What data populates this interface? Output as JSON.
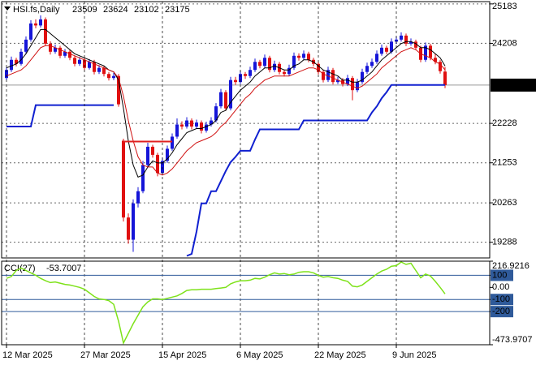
{
  "chart_data": [
    {
      "type": "candlestick",
      "title": "HSI.fs,Daily",
      "up_color": "#1515d8",
      "down_color": "#e01010",
      "grid": true,
      "price_line": true,
      "ylim": [
        18900,
        25240
      ],
      "yticks": [
        19288,
        20263,
        21253,
        22228,
        24208,
        25183
      ],
      "categories": [
        "12 Mar 2025",
        null,
        null,
        null,
        null,
        null,
        null,
        null,
        null,
        null,
        null,
        null,
        null,
        null,
        null,
        null,
        "27 Mar 2025",
        null,
        null,
        null,
        null,
        null,
        null,
        null,
        null,
        null,
        null,
        null,
        null,
        null,
        null,
        null,
        "15 Apr 2025",
        null,
        null,
        null,
        null,
        null,
        null,
        null,
        null,
        null,
        null,
        null,
        null,
        null,
        null,
        null,
        "6 May 2025",
        null,
        null,
        null,
        null,
        null,
        null,
        null,
        null,
        null,
        null,
        null,
        null,
        null,
        null,
        null,
        "22 May 2025",
        null,
        null,
        null,
        null,
        null,
        null,
        null,
        null,
        null,
        null,
        null,
        null,
        null,
        null,
        null,
        "9 Jun 2025",
        null,
        null,
        null,
        null,
        null,
        null,
        null,
        null,
        null,
        null
      ],
      "open": [
        23350,
        23550,
        23800,
        23700,
        24000,
        24300,
        24700,
        24650,
        24800,
        24200,
        24000,
        24100,
        23900,
        24000,
        23850,
        23700,
        23800,
        23600,
        23750,
        23500,
        23600,
        23450,
        23350,
        23400,
        21800,
        19900,
        19350,
        20250,
        20550,
        21200,
        21650,
        21450,
        21000,
        21300,
        21600,
        21900,
        22200,
        22150,
        22300,
        22150,
        22250,
        22050,
        22200,
        22300,
        22650,
        23000,
        22600,
        23300,
        23250,
        23450,
        23400,
        23550,
        23750,
        23650,
        23850,
        23550,
        23700,
        23500,
        23450,
        23600,
        23900,
        23850,
        23950,
        23800,
        23700,
        23500,
        23300,
        23550,
        23250,
        23300,
        23200,
        23350,
        23050,
        23250,
        23500,
        23650,
        23750,
        23950,
        24100,
        24000,
        24250,
        24300,
        24400,
        24200,
        24250,
        24100,
        23800,
        24150,
        23850,
        23750,
        23509
      ],
      "high": [
        23620,
        23880,
        23850,
        24080,
        24380,
        24780,
        24800,
        24900,
        24850,
        24260,
        24180,
        24150,
        24070,
        24050,
        23900,
        23870,
        23850,
        23820,
        23800,
        23670,
        23650,
        23500,
        23480,
        23450,
        21850,
        20000,
        20350,
        20650,
        21300,
        21750,
        21700,
        21500,
        21380,
        21680,
        21980,
        22350,
        22280,
        22380,
        22350,
        22320,
        22300,
        22270,
        22380,
        22730,
        23080,
        23050,
        23380,
        23380,
        23530,
        23500,
        23630,
        23830,
        23800,
        23930,
        23900,
        23780,
        23750,
        23560,
        23680,
        23980,
        23960,
        24030,
        24000,
        23850,
        23750,
        23550,
        23630,
        23600,
        23380,
        23350,
        23430,
        23400,
        23330,
        23580,
        23730,
        23830,
        24030,
        24180,
        24150,
        24330,
        24380,
        24480,
        24450,
        24330,
        24300,
        24150,
        24230,
        24200,
        23950,
        23800,
        23624
      ],
      "low": [
        23300,
        23500,
        23640,
        23660,
        23950,
        24250,
        24580,
        24600,
        24150,
        23930,
        23950,
        23840,
        23850,
        23790,
        23640,
        23650,
        23540,
        23560,
        23440,
        23450,
        23390,
        23290,
        23300,
        22640,
        19800,
        19250,
        19050,
        20150,
        20500,
        21150,
        21380,
        20920,
        20950,
        21250,
        21550,
        21850,
        22080,
        22100,
        22080,
        22100,
        21980,
        22000,
        22150,
        22250,
        22600,
        22540,
        22550,
        23180,
        23200,
        23330,
        23350,
        23500,
        23590,
        23600,
        23490,
        23500,
        23440,
        23390,
        23400,
        23550,
        23780,
        23800,
        23740,
        23640,
        23440,
        23240,
        23250,
        23190,
        23200,
        23140,
        23150,
        22800,
        23000,
        23200,
        23450,
        23600,
        23700,
        23900,
        23940,
        23950,
        24200,
        24250,
        24140,
        24150,
        24040,
        23740,
        23750,
        23790,
        23690,
        23460,
        23102
      ],
      "close": [
        23550,
        23800,
        23700,
        24000,
        24300,
        24700,
        24650,
        24800,
        24200,
        24000,
        24100,
        23900,
        24000,
        23850,
        23700,
        23800,
        23600,
        23750,
        23500,
        23600,
        23450,
        23350,
        23400,
        22700,
        19900,
        19350,
        20250,
        20550,
        21200,
        21650,
        21450,
        21000,
        21300,
        21600,
        21900,
        22200,
        22150,
        22300,
        22150,
        22250,
        22050,
        22200,
        22300,
        22650,
        23000,
        22600,
        23300,
        23250,
        23450,
        23400,
        23550,
        23750,
        23650,
        23850,
        23550,
        23700,
        23500,
        23450,
        23600,
        23900,
        23850,
        23950,
        23800,
        23700,
        23500,
        23300,
        23550,
        23250,
        23300,
        23200,
        23350,
        23050,
        23250,
        23500,
        23650,
        23750,
        23950,
        24100,
        24000,
        24250,
        24300,
        24400,
        24200,
        24250,
        24100,
        23800,
        24150,
        23850,
        23750,
        23520,
        23175
      ],
      "lines": [
        {
          "color": "#000000",
          "width": 1,
          "values": [
            23600,
            23650,
            23700,
            23800,
            23950,
            24150,
            24350,
            24550,
            24550,
            24450,
            24350,
            24250,
            24150,
            24050,
            23950,
            23900,
            23850,
            23800,
            23750,
            23700,
            23650,
            23550,
            23500,
            23300,
            22600,
            21800,
            21200,
            20900,
            20950,
            21150,
            21300,
            21250,
            21250,
            21350,
            21500,
            21700,
            21850,
            22000,
            22050,
            22100,
            22100,
            22150,
            22200,
            22300,
            22500,
            22550,
            22750,
            22900,
            23050,
            23150,
            23250,
            23400,
            23500,
            23600,
            23600,
            23650,
            23600,
            23550,
            23550,
            23650,
            23700,
            23800,
            23800,
            23750,
            23650,
            23550,
            23500,
            23450,
            23400,
            23300,
            23300,
            23250,
            23250,
            23300,
            23400,
            23500,
            23650,
            23800,
            23900,
            24000,
            24100,
            24200,
            24250,
            24250,
            24200,
            24100,
            24100,
            24050,
            23950,
            23850,
            23650
          ]
        },
        {
          "color": "#d01010",
          "width": 1,
          "values": [
            23400,
            23450,
            23500,
            23550,
            23650,
            23800,
            23950,
            24100,
            24150,
            24150,
            24100,
            24050,
            24000,
            23950,
            23900,
            23850,
            23800,
            23750,
            23700,
            23650,
            23600,
            23550,
            23500,
            23350,
            22900,
            22300,
            21800,
            21400,
            21200,
            21150,
            21150,
            21000,
            20950,
            21000,
            21100,
            21250,
            21400,
            21550,
            21650,
            21750,
            21800,
            21850,
            21900,
            22000,
            22150,
            22250,
            22400,
            22550,
            22700,
            22850,
            22950,
            23100,
            23200,
            23300,
            23350,
            23400,
            23400,
            23400,
            23400,
            23450,
            23500,
            23550,
            23600,
            23600,
            23550,
            23450,
            23400,
            23350,
            23300,
            23250,
            23200,
            23150,
            23100,
            23150,
            23250,
            23350,
            23450,
            23600,
            23700,
            23800,
            23900,
            24000,
            24050,
            24100,
            24050,
            23950,
            23900,
            23850,
            23750,
            23700,
            23550
          ]
        },
        {
          "color": "#1020d0",
          "width": 2,
          "values": [
            22150,
            22150,
            22150,
            22150,
            22150,
            22150,
            22680,
            22680,
            22680,
            22680,
            22680,
            22680,
            22680,
            22680,
            22680,
            22680,
            22680,
            22680,
            22680,
            22680,
            22680,
            22680,
            22680,
            null,
            null,
            null,
            null,
            null,
            null,
            null,
            null,
            null,
            null,
            null,
            null,
            null,
            null,
            18950,
            19000,
            19550,
            20250,
            20250,
            20550,
            20550,
            20800,
            21050,
            21270,
            21400,
            21550,
            21550,
            21550,
            21830,
            22080,
            22080,
            22080,
            22080,
            22080,
            22080,
            22080,
            22080,
            22080,
            22300,
            22300,
            22300,
            22300,
            22300,
            22300,
            22300,
            22300,
            22300,
            22300,
            22300,
            22300,
            22300,
            22300,
            22500,
            22650,
            22850,
            23000,
            23180,
            23180,
            23180,
            23180,
            23180,
            23180,
            23180,
            23180,
            23180,
            23180,
            23180,
            23180
          ]
        },
        {
          "color": "#e02020",
          "width": 2,
          "values": [
            null,
            null,
            null,
            null,
            null,
            null,
            null,
            null,
            null,
            null,
            null,
            null,
            null,
            null,
            null,
            null,
            null,
            null,
            null,
            null,
            null,
            null,
            null,
            null,
            21780,
            21780,
            21780,
            21780,
            21780,
            21780,
            21780,
            21780,
            21780,
            21780,
            21780,
            null,
            null,
            null,
            null,
            null,
            null,
            null,
            null,
            null,
            null,
            null,
            null,
            null,
            null,
            null,
            null,
            null,
            null,
            null,
            null,
            null,
            null,
            null,
            null,
            null,
            null,
            null,
            null,
            null,
            null,
            null,
            null,
            null,
            null,
            null,
            null,
            null,
            null,
            null,
            null,
            null,
            null,
            null,
            null,
            null,
            null,
            null,
            null,
            null,
            null,
            null,
            null,
            null,
            null,
            null,
            null
          ]
        }
      ]
    },
    {
      "type": "line",
      "title": "CCI(27)",
      "color": "#7ee21a",
      "level_color": "#2f5a9a",
      "grid": false,
      "ylim": [
        -473.9707,
        216.9216
      ],
      "yticks": [
        216.9216,
        100,
        {
          "value": 0,
          "label": "0.00"
        },
        -100,
        -200,
        -473.9707
      ],
      "levels": [
        100,
        -100,
        -200
      ],
      "values": [
        75,
        90,
        140,
        160,
        140,
        120,
        100,
        75,
        55,
        40,
        45,
        35,
        25,
        20,
        10,
        0,
        -15,
        -45,
        -75,
        -95,
        -100,
        -110,
        -140,
        -280,
        -460,
        -380,
        -300,
        -230,
        -160,
        -120,
        -95,
        -95,
        -100,
        -90,
        -80,
        -70,
        -50,
        -25,
        -20,
        -20,
        -15,
        -15,
        -15,
        -10,
        -5,
        0,
        30,
        45,
        55,
        55,
        60,
        75,
        70,
        85,
        105,
        120,
        110,
        115,
        105,
        110,
        125,
        130,
        130,
        120,
        100,
        85,
        90,
        80,
        75,
        60,
        50,
        10,
        5,
        20,
        50,
        80,
        110,
        135,
        150,
        175,
        180,
        210,
        190,
        200,
        140,
        80,
        110,
        95,
        50,
        0,
        -53.7007
      ]
    }
  ]
}
